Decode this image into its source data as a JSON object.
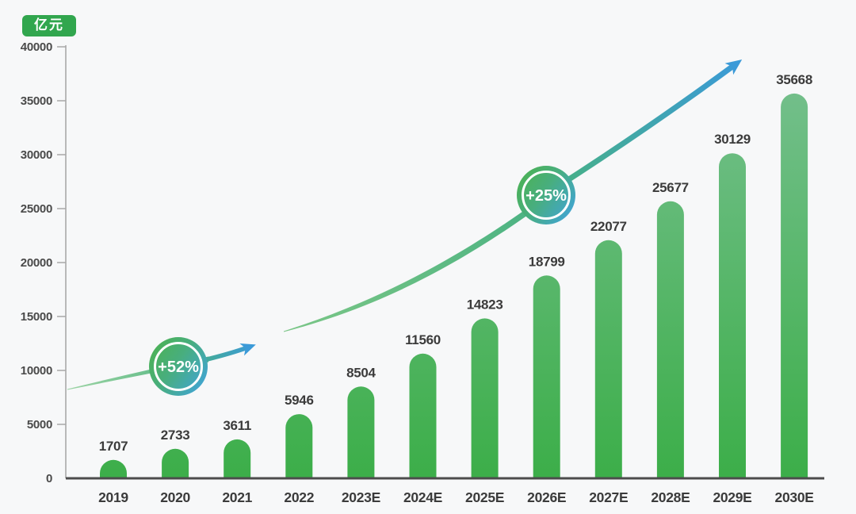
{
  "unit_label": "亿元",
  "chart_data": {
    "type": "bar",
    "title": "",
    "xlabel": "",
    "ylabel": "",
    "unit": "亿元",
    "categories": [
      "2019",
      "2020",
      "2021",
      "2022",
      "2023E",
      "2024E",
      "2025E",
      "2026E",
      "2027E",
      "2028E",
      "2029E",
      "2030E"
    ],
    "values": [
      1707,
      2733,
      3611,
      5946,
      8504,
      11560,
      14823,
      18799,
      22077,
      25677,
      30129,
      35668
    ],
    "ylim": [
      0,
      40000
    ],
    "yticks": [
      0,
      5000,
      10000,
      15000,
      20000,
      25000,
      30000,
      35000,
      40000
    ],
    "grid": false,
    "legend": null,
    "annotations": [
      {
        "label": "+52%",
        "type": "growth-arrow",
        "approx_span": "2019-2022"
      },
      {
        "label": "+25%",
        "type": "growth-arrow",
        "approx_span": "2022-2030E"
      }
    ],
    "colors": {
      "background": "#f7f8f9",
      "bar_top": "#73bf8b",
      "bar_bottom": "#3cae49",
      "curve_green": "#52b662",
      "curve_teal": "#47b184",
      "arrow_blue": "#3b9ad8",
      "badge_green": "#4cb252",
      "badge_blue": "#40a4da",
      "badge_ring": "#ffffff",
      "unit_badge_bg": "#31a64e",
      "axis_x": "#4c4c4c",
      "axis_y": "#b9b9b9",
      "tick": "#a8a8a8",
      "label_text": "#3b3b3b",
      "ytick_text": "#4a4a4a"
    }
  }
}
